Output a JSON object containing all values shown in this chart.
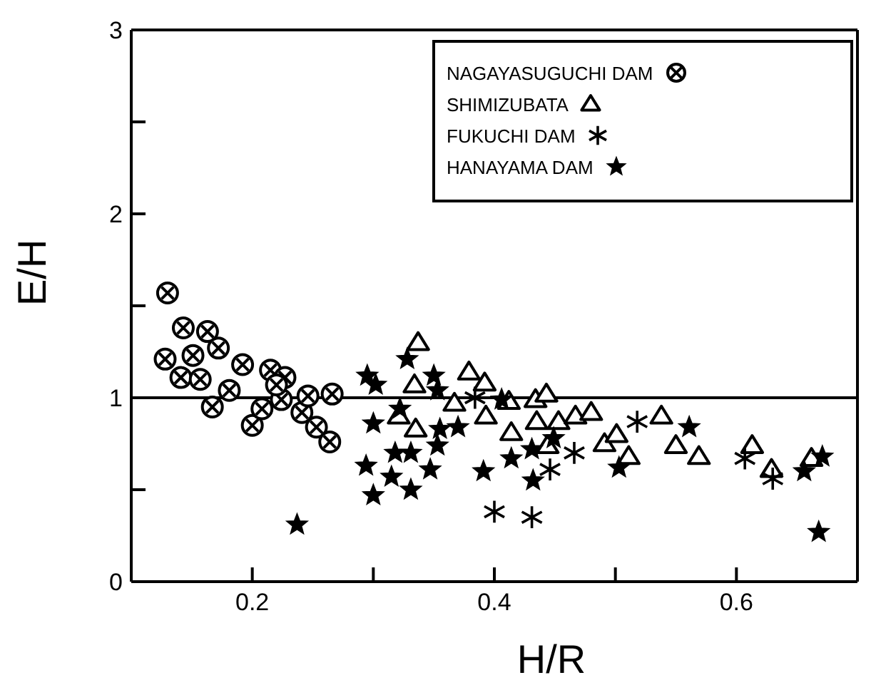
{
  "chart_data": {
    "type": "scatter",
    "xlabel": "H/R",
    "ylabel": "E/H",
    "xlim": [
      0.1,
      0.7
    ],
    "xticks": [
      0.2,
      {
        "value": 0.3,
        "label": null
      },
      0.4,
      {
        "value": 0.5,
        "label": null
      },
      0.6
    ],
    "ylim": [
      0,
      3
    ],
    "yticks": [
      0,
      {
        "value": 0.5,
        "label": null
      },
      1,
      {
        "value": 1.5,
        "label": null
      },
      2,
      {
        "value": 2.5,
        "label": null
      },
      3
    ],
    "legend": "top right",
    "grid": false,
    "ref_lines": [
      {
        "axis": "y",
        "value": 1,
        "color": "#000000",
        "line_style": "solid"
      }
    ],
    "series": [
      {
        "name": "NAGAYASUGUCHI DAM",
        "color": "#000000",
        "marker": "circle",
        "x": [
          0.13,
          0.128,
          0.143,
          0.141,
          0.151,
          0.157,
          0.163,
          0.172,
          0.167,
          0.181,
          0.192,
          0.2,
          0.208,
          0.215,
          0.227,
          0.224,
          0.241,
          0.253,
          0.264,
          0.246,
          0.266,
          0.22
        ],
        "values": [
          1.57,
          1.21,
          1.38,
          1.11,
          1.23,
          1.1,
          1.36,
          1.27,
          0.95,
          1.04,
          1.18,
          0.85,
          0.94,
          1.15,
          1.11,
          0.99,
          0.92,
          0.84,
          0.76,
          1.01,
          1.02,
          1.07
        ]
      },
      {
        "name": "SHIMIZUBATA",
        "color": "#000000",
        "marker": "triangle",
        "x": [
          0.337,
          0.379,
          0.392,
          0.334,
          0.321,
          0.335,
          0.367,
          0.393,
          0.412,
          0.434,
          0.443,
          0.435,
          0.414,
          0.453,
          0.467,
          0.48,
          0.444,
          0.491,
          0.501,
          0.511,
          0.538,
          0.55,
          0.569,
          0.613,
          0.629,
          0.662
        ],
        "values": [
          1.3,
          1.14,
          1.08,
          1.07,
          0.9,
          0.83,
          0.97,
          0.9,
          0.98,
          0.99,
          1.02,
          0.87,
          0.81,
          0.87,
          0.9,
          0.92,
          0.74,
          0.75,
          0.8,
          0.68,
          0.9,
          0.74,
          0.68,
          0.74,
          0.61,
          0.67
        ]
      },
      {
        "name": "FUKUCHI DAM",
        "color": "#000000",
        "marker": "cross",
        "x": [
          0.4,
          0.431,
          0.446,
          0.466,
          0.518,
          0.607,
          0.63,
          0.384
        ],
        "values": [
          0.38,
          0.35,
          0.61,
          0.7,
          0.87,
          0.67,
          0.56,
          1.0
        ]
      },
      {
        "name": "HANAYAMA DAM",
        "color": "#000000",
        "marker": "star",
        "x": [
          0.237,
          0.295,
          0.302,
          0.3,
          0.294,
          0.3,
          0.315,
          0.318,
          0.331,
          0.331,
          0.322,
          0.328,
          0.35,
          0.353,
          0.347,
          0.353,
          0.355,
          0.37,
          0.391,
          0.406,
          0.414,
          0.431,
          0.432,
          0.449,
          0.503,
          0.561,
          0.656,
          0.671,
          0.668
        ],
        "values": [
          0.31,
          1.12,
          1.07,
          0.86,
          0.63,
          0.47,
          0.57,
          0.7,
          0.7,
          0.5,
          0.94,
          1.21,
          1.12,
          1.04,
          0.61,
          0.74,
          0.83,
          0.84,
          0.6,
          0.99,
          0.67,
          0.72,
          0.55,
          0.78,
          0.62,
          0.84,
          0.6,
          0.68,
          0.27
        ]
      }
    ]
  }
}
